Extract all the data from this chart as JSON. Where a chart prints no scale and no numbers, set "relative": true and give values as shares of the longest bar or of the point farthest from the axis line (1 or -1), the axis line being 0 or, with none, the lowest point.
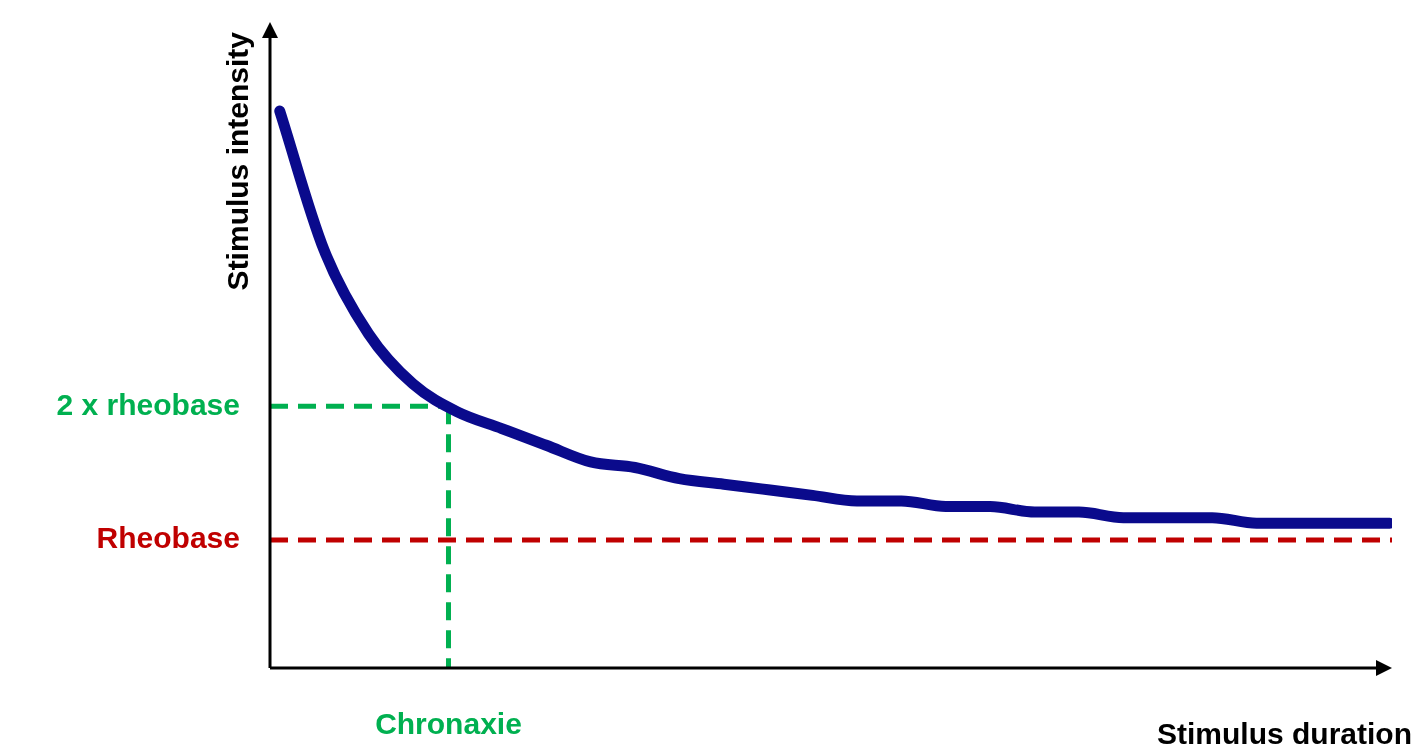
{
  "chart_data": {
    "type": "line",
    "relative": true,
    "xlabel": "Stimulus duration",
    "ylabel": "Stimulus intensity",
    "categories": [
      null,
      null,
      null,
      null,
      null,
      null,
      null,
      null,
      null,
      null,
      null,
      null,
      null,
      null,
      null,
      null,
      null,
      null,
      null,
      null,
      null,
      null,
      null,
      null,
      null,
      null
    ],
    "series": [
      {
        "color": "#0a0a8c",
        "values": [
          1,
          0.75,
          0.6,
          0.51,
          0.46,
          0.43,
          0.4,
          0.37,
          0.36,
          0.34,
          0.33,
          0.32,
          0.31,
          0.3,
          0.3,
          0.29,
          0.29,
          0.28,
          0.28,
          0.27,
          0.27,
          0.27,
          0.26,
          0.26,
          0.26,
          0.26
        ]
      }
    ],
    "ref_lines": [
      {
        "axis": "y",
        "value": 0.47,
        "label": "2 x rheobase",
        "color": "#00b050",
        "line_style": "dashed"
      },
      {
        "axis": "y",
        "value": 0.23,
        "label": "Rheobase",
        "color": "#c00000",
        "line_style": "dashed"
      }
    ],
    "annotations": [
      "Chronaxie"
    ],
    "legend": false,
    "marker": "none",
    "line_style": "solid"
  }
}
